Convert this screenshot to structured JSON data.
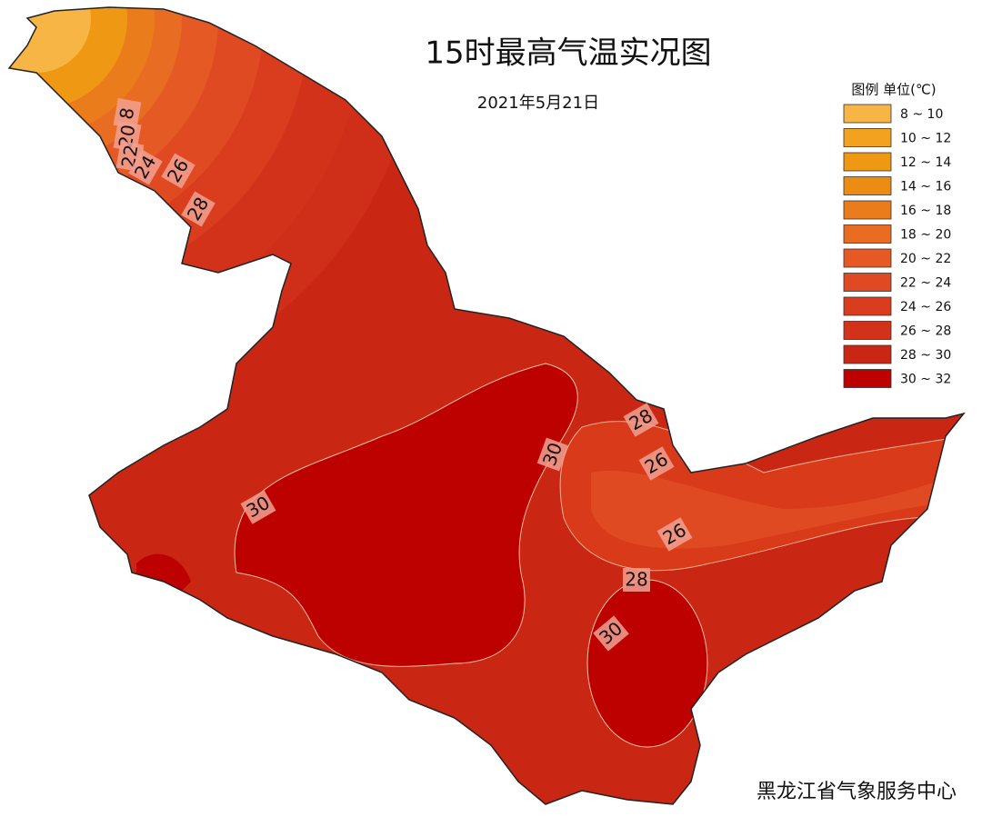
{
  "header": {
    "title": "15时最高气温实况图",
    "date": "2021年5月21日"
  },
  "legend": {
    "heading": "图例 单位(℃)",
    "items": [
      {
        "label": "8  ~ 10",
        "color": "#f6b545"
      },
      {
        "label": "10 ~ 12",
        "color": "#f2a21f"
      },
      {
        "label": "12 ~ 14",
        "color": "#ef9813"
      },
      {
        "label": "14 ~ 16",
        "color": "#ed8c12"
      },
      {
        "label": "16 ~ 18",
        "color": "#ea7c1c"
      },
      {
        "label": "18 ~ 20",
        "color": "#e86c22"
      },
      {
        "label": "20 ~ 22",
        "color": "#e55a24"
      },
      {
        "label": "22 ~ 24",
        "color": "#e04a22"
      },
      {
        "label": "24 ~ 26",
        "color": "#da3d1e"
      },
      {
        "label": "26 ~ 28",
        "color": "#d3321a"
      },
      {
        "label": "28 ~ 30",
        "color": "#c92714"
      },
      {
        "label": "30 ~ 32",
        "color": "#bd0000"
      }
    ]
  },
  "contour_labels": [
    "8",
    "20",
    "22",
    "24",
    "26",
    "28",
    "28",
    "26",
    "26",
    "28",
    "30",
    "30",
    "30"
  ],
  "footer": {
    "credit": "黑龙江省气象服务中心"
  }
}
